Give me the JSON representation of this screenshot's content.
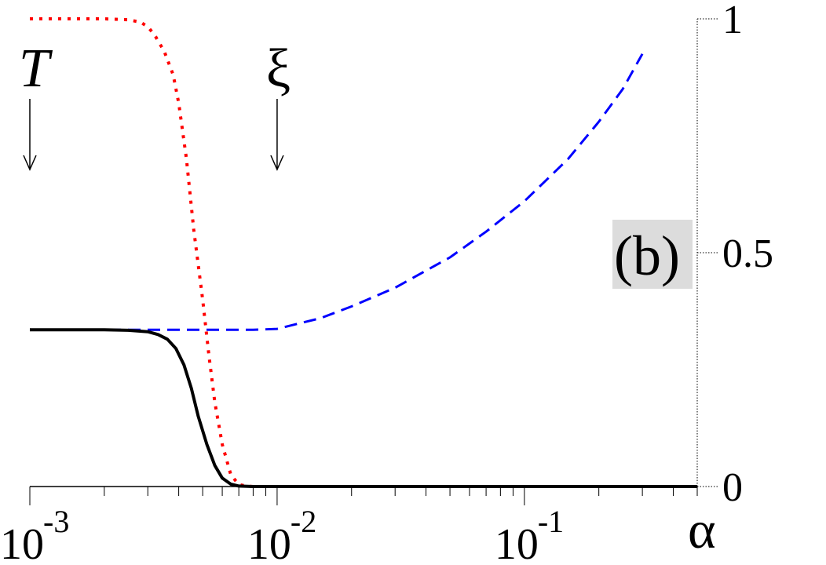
{
  "chart_data": {
    "type": "line",
    "xscale": "log",
    "xlim": [
      0.001,
      0.5
    ],
    "ylim": [
      0,
      1
    ],
    "xlabel": "α",
    "panel_label": "(b)",
    "x_ticks": [
      {
        "value": 0.001,
        "base": "10",
        "exp": "-3"
      },
      {
        "value": 0.01,
        "base": "10",
        "exp": "-2"
      },
      {
        "value": 0.1,
        "base": "10",
        "exp": "-1"
      }
    ],
    "y_ticks": [
      {
        "value": 0,
        "label": "0"
      },
      {
        "value": 0.5,
        "label": "0.5"
      },
      {
        "value": 1,
        "label": "1"
      }
    ],
    "annotations": [
      {
        "text": "T",
        "x": 0.001,
        "italic": true
      },
      {
        "text": "ξ",
        "x": 0.01,
        "italic": false
      }
    ],
    "grid": false,
    "series": [
      {
        "style": "dotted",
        "color": "#ff0000",
        "x": [
          0.001,
          0.002,
          0.0025,
          0.0028,
          0.003,
          0.0032,
          0.0035,
          0.0038,
          0.004,
          0.0043,
          0.0046,
          0.005,
          0.0053,
          0.0056,
          0.006,
          0.0065,
          0.007,
          0.0075,
          0.008
        ],
        "y": [
          1,
          1,
          0.998,
          0.993,
          0.983,
          0.965,
          0.93,
          0.88,
          0.82,
          0.7,
          0.55,
          0.4,
          0.28,
          0.18,
          0.09,
          0.025,
          0.004,
          0.001,
          0
        ]
      },
      {
        "style": "dashed",
        "color": "#0000ff",
        "x": [
          0.001,
          0.002,
          0.005,
          0.008,
          0.01,
          0.015,
          0.02,
          0.03,
          0.05,
          0.07,
          0.1,
          0.15,
          0.2,
          0.25,
          0.3
        ],
        "y": [
          0.335,
          0.335,
          0.335,
          0.335,
          0.337,
          0.36,
          0.385,
          0.425,
          0.49,
          0.545,
          0.61,
          0.7,
          0.78,
          0.85,
          0.925
        ]
      },
      {
        "style": "solid",
        "color": "#000000",
        "x": [
          0.001,
          0.002,
          0.0025,
          0.003,
          0.0033,
          0.0036,
          0.0039,
          0.0042,
          0.0045,
          0.0048,
          0.0052,
          0.0056,
          0.006,
          0.0065,
          0.007,
          0.008,
          0.5
        ],
        "y": [
          0.335,
          0.335,
          0.334,
          0.331,
          0.325,
          0.315,
          0.295,
          0.26,
          0.21,
          0.15,
          0.09,
          0.045,
          0.018,
          0.005,
          0.001,
          0,
          0
        ]
      }
    ]
  }
}
